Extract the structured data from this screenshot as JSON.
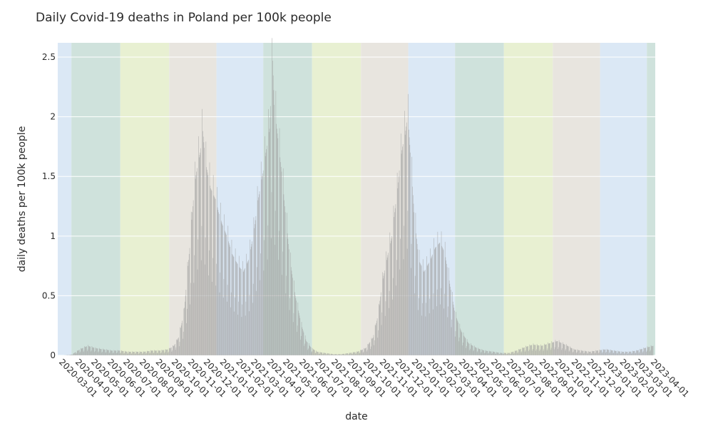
{
  "chart_data": {
    "type": "bar",
    "title": "Daily Covid-19 deaths in Poland per 100k people",
    "xlabel": "date",
    "ylabel": "daily deaths per 100k people",
    "x_range": [
      "2020-02-23",
      "2023-04-05"
    ],
    "ylim": [
      0,
      2.62
    ],
    "y_ticks": [
      0,
      0.5,
      1,
      1.5,
      2,
      2.5
    ],
    "y_tick_labels": [
      "0",
      "0.5",
      "1",
      "1.5",
      "2",
      "2.5"
    ],
    "x_tick_labels": [
      "2020-03-01",
      "2020-04-01",
      "2020-05-01",
      "2020-06-01",
      "2020-07-01",
      "2020-08-01",
      "2020-09-01",
      "2020-10-01",
      "2020-11-01",
      "2020-12-01",
      "2021-01-01",
      "2021-02-01",
      "2021-03-01",
      "2021-04-01",
      "2021-05-01",
      "2021-06-01",
      "2021-07-01",
      "2021-08-01",
      "2021-09-01",
      "2021-10-01",
      "2021-11-01",
      "2021-12-01",
      "2022-01-01",
      "2022-02-01",
      "2022-03-01",
      "2022-04-01",
      "2022-05-01",
      "2022-06-01",
      "2022-07-01",
      "2022-08-01",
      "2022-09-01",
      "2022-10-01",
      "2022-11-01",
      "2022-12-01",
      "2023-01-01",
      "2023-02-01",
      "2023-03-01",
      "2023-04-01"
    ],
    "grid": true,
    "legend": "none",
    "bar_color": "#a0a0a0",
    "seasons": [
      {
        "season": "winter",
        "start": "2020-02-23",
        "end": "2020-03-20",
        "color": "#dbe8f5"
      },
      {
        "season": "spring",
        "start": "2020-03-20",
        "end": "2020-06-21",
        "color": "#cfe2dc"
      },
      {
        "season": "summer",
        "start": "2020-06-21",
        "end": "2020-09-22",
        "color": "#e8f0d2"
      },
      {
        "season": "autumn",
        "start": "2020-09-22",
        "end": "2020-12-21",
        "color": "#e8e5df"
      },
      {
        "season": "winter",
        "start": "2020-12-21",
        "end": "2021-03-20",
        "color": "#dbe8f5"
      },
      {
        "season": "spring",
        "start": "2021-03-20",
        "end": "2021-06-21",
        "color": "#cfe2dc"
      },
      {
        "season": "summer",
        "start": "2021-06-21",
        "end": "2021-09-22",
        "color": "#e8f0d2"
      },
      {
        "season": "autumn",
        "start": "2021-09-22",
        "end": "2021-12-21",
        "color": "#e8e5df"
      },
      {
        "season": "winter",
        "start": "2021-12-21",
        "end": "2022-03-20",
        "color": "#dbe8f5"
      },
      {
        "season": "spring",
        "start": "2022-03-20",
        "end": "2022-06-21",
        "color": "#cfe2dc"
      },
      {
        "season": "summer",
        "start": "2022-06-21",
        "end": "2022-09-22",
        "color": "#e8f0d2"
      },
      {
        "season": "autumn",
        "start": "2022-09-22",
        "end": "2022-12-21",
        "color": "#e8e5df"
      },
      {
        "season": "winter",
        "start": "2022-12-21",
        "end": "2023-03-20",
        "color": "#dbe8f5"
      },
      {
        "season": "spring",
        "start": "2023-03-20",
        "end": "2023-04-05",
        "color": "#cfe2dc"
      }
    ],
    "series": [
      {
        "x": [
          "2020-03-05",
          "2020-03-20",
          "2020-04-05",
          "2020-04-20",
          "2020-05-05",
          "2020-05-20",
          "2020-06-05",
          "2020-06-20",
          "2020-07-05",
          "2020-07-20",
          "2020-08-05",
          "2020-08-20",
          "2020-09-05",
          "2020-09-20",
          "2020-10-01",
          "2020-10-10",
          "2020-10-20",
          "2020-10-25",
          "2020-11-01",
          "2020-11-05",
          "2020-11-10",
          "2020-11-15",
          "2020-11-20",
          "2020-11-25",
          "2020-12-01",
          "2020-12-10",
          "2020-12-20",
          "2020-12-25",
          "2021-01-01",
          "2021-01-10",
          "2021-01-20",
          "2021-02-01",
          "2021-02-10",
          "2021-02-20",
          "2021-03-01",
          "2021-03-10",
          "2021-03-20",
          "2021-03-25",
          "2021-04-01",
          "2021-04-07",
          "2021-04-10",
          "2021-04-15",
          "2021-04-20",
          "2021-04-25",
          "2021-05-01",
          "2021-05-10",
          "2021-05-20",
          "2021-06-01",
          "2021-06-10",
          "2021-06-20",
          "2021-07-01",
          "2021-07-15",
          "2021-08-01",
          "2021-08-15",
          "2021-09-01",
          "2021-09-15",
          "2021-10-01",
          "2021-10-15",
          "2021-10-25",
          "2021-11-01",
          "2021-11-10",
          "2021-11-20",
          "2021-11-25",
          "2021-12-01",
          "2021-12-05",
          "2021-12-10",
          "2021-12-15",
          "2021-12-20",
          "2021-12-25",
          "2022-01-01",
          "2022-01-10",
          "2022-01-20",
          "2022-02-01",
          "2022-02-10",
          "2022-02-20",
          "2022-03-01",
          "2022-03-10",
          "2022-03-20",
          "2022-04-01",
          "2022-04-15",
          "2022-05-01",
          "2022-05-15",
          "2022-06-01",
          "2022-06-15",
          "2022-07-01",
          "2022-07-15",
          "2022-08-01",
          "2022-08-15",
          "2022-09-01",
          "2022-09-15",
          "2022-10-01",
          "2022-10-10",
          "2022-10-20",
          "2022-11-01",
          "2022-11-15",
          "2022-12-01",
          "2022-12-15",
          "2023-01-01",
          "2023-01-15",
          "2023-02-01",
          "2023-02-15",
          "2023-03-01",
          "2023-03-15",
          "2023-04-01"
        ],
        "values": [
          0.0,
          0.005,
          0.05,
          0.08,
          0.06,
          0.05,
          0.04,
          0.04,
          0.03,
          0.03,
          0.03,
          0.04,
          0.04,
          0.05,
          0.08,
          0.15,
          0.35,
          0.6,
          0.95,
          1.2,
          1.45,
          1.6,
          1.7,
          1.88,
          1.6,
          1.4,
          1.3,
          1.2,
          1.1,
          1.0,
          0.85,
          0.75,
          0.7,
          0.8,
          1.0,
          1.3,
          1.55,
          1.7,
          1.9,
          2.47,
          2.1,
          1.9,
          1.7,
          1.5,
          1.2,
          0.8,
          0.5,
          0.25,
          0.12,
          0.06,
          0.03,
          0.02,
          0.01,
          0.01,
          0.02,
          0.03,
          0.06,
          0.15,
          0.35,
          0.6,
          0.8,
          1.0,
          1.2,
          1.4,
          1.6,
          1.75,
          1.85,
          2.02,
          1.7,
          1.2,
          0.8,
          0.7,
          0.8,
          0.9,
          0.95,
          0.85,
          0.6,
          0.35,
          0.2,
          0.1,
          0.06,
          0.04,
          0.03,
          0.02,
          0.02,
          0.04,
          0.07,
          0.09,
          0.08,
          0.1,
          0.12,
          0.1,
          0.08,
          0.05,
          0.04,
          0.03,
          0.04,
          0.05,
          0.04,
          0.03,
          0.03,
          0.04,
          0.06,
          0.08
        ]
      }
    ]
  }
}
